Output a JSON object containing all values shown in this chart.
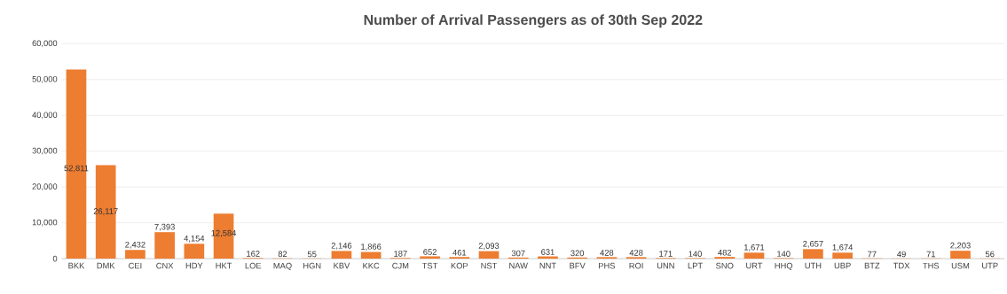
{
  "chart_data": {
    "type": "bar",
    "title": "Number of Arrival Passengers as of 30th Sep 2022",
    "categories": [
      "BKK",
      "DMK",
      "CEI",
      "CNX",
      "HDY",
      "HKT",
      "LOE",
      "MAQ",
      "HGN",
      "KBV",
      "KKC",
      "CJM",
      "TST",
      "KOP",
      "NST",
      "NAW",
      "NNT",
      "BFV",
      "PHS",
      "ROI",
      "UNN",
      "LPT",
      "SNO",
      "URT",
      "HHQ",
      "UTH",
      "UBP",
      "BTZ",
      "TDX",
      "THS",
      "USM",
      "UTP"
    ],
    "values": [
      52811,
      26117,
      2432,
      7393,
      4154,
      12584,
      162,
      82,
      55,
      2146,
      1866,
      187,
      652,
      461,
      2093,
      307,
      631,
      320,
      428,
      428,
      171,
      140,
      482,
      1671,
      140,
      2657,
      1674,
      77,
      49,
      71,
      2203,
      56
    ],
    "value_labels": [
      "52,811",
      "26,117",
      "2,432",
      "7,393",
      "4,154",
      "12,584",
      "162",
      "82",
      "55",
      "2,146",
      "1,866",
      "187",
      "652",
      "461",
      "2,093",
      "307",
      "631",
      "320",
      "428",
      "428",
      "171",
      "140",
      "482",
      "1,671",
      "140",
      "2,657",
      "1,674",
      "77",
      "49",
      "71",
      "2,203",
      "56"
    ],
    "color": "#ed7d31",
    "ylim": [
      0,
      60000
    ],
    "yticks": [
      0,
      {
        "value": 10000,
        "label": "10,000"
      },
      {
        "value": 20000,
        "label": "20,000"
      },
      {
        "value": 30000,
        "label": "30,000"
      },
      {
        "value": 40000,
        "label": "40,000"
      },
      {
        "value": 50000,
        "label": "50,000"
      },
      {
        "value": 60000,
        "label": "60,000"
      }
    ],
    "grid": "y"
  }
}
